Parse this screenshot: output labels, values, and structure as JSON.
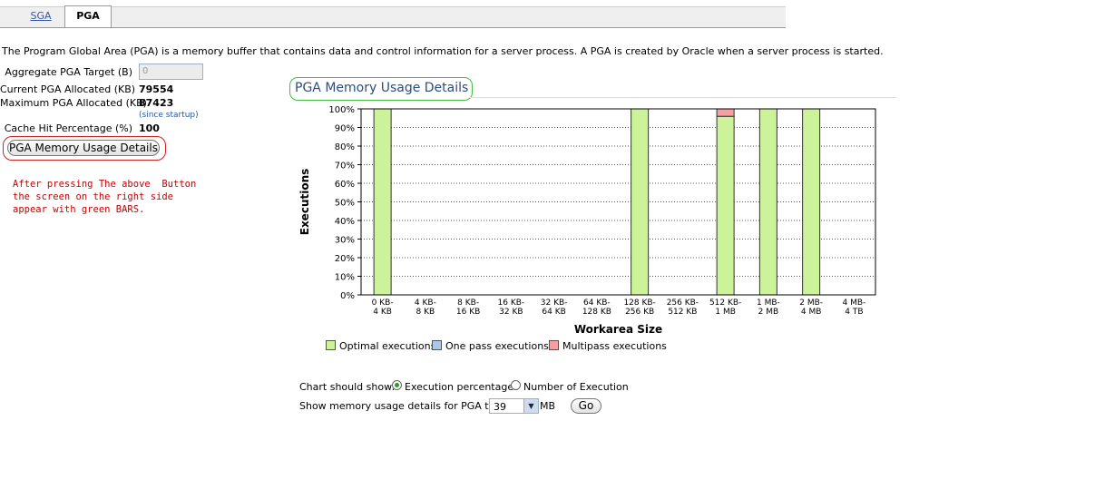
{
  "tabs": [
    {
      "label": "SGA",
      "selected": false
    },
    {
      "label": "PGA",
      "selected": true
    }
  ],
  "description": "The Program Global Area (PGA) is a memory buffer that contains data and control information for a server process. A PGA is created by Oracle when a server process is started.",
  "fields": {
    "aggregate_target_label": "Aggregate PGA Target (B)",
    "aggregate_target_value": "0",
    "current_label": "Current PGA Allocated (KB)",
    "current_value": "79554",
    "maximum_label": "Maximum PGA Allocated (KB)",
    "maximum_value": "87423",
    "since_startup": "(since startup)",
    "cache_hit_label": "Cache Hit Percentage (%)",
    "cache_hit_value": "100"
  },
  "details_button_label": "PGA Memory Usage Details",
  "annotation_note": "After pressing The above  Button\nthe screen on the right side\nappear with green BARS.",
  "chart_panel": {
    "title": "PGA Memory Usage Details",
    "colors": {
      "optimal": "#ccf29a",
      "onepass": "#a8c8f0",
      "multipass": "#f4a0a0",
      "grid": "#555555"
    },
    "legend": {
      "optimal": "Optimal executions",
      "onepass": "One pass executions",
      "multipass": "Multipass executions"
    },
    "controls": {
      "show_label": "Chart should show:",
      "option_percent": "Execution percentages",
      "option_number": "Number of Execution",
      "selected_option": "percent",
      "target_label": "Show memory usage details for PGA target:",
      "target_value": "39",
      "target_unit": "MB",
      "go_label": "Go"
    }
  },
  "chart_data": {
    "type": "bar",
    "stacked": true,
    "xlabel": "Workarea Size",
    "ylabel": "Executions",
    "ylim": [
      0,
      100
    ],
    "yticks": [
      "0%",
      "10%",
      "20%",
      "30%",
      "40%",
      "50%",
      "60%",
      "70%",
      "80%",
      "90%",
      "100%"
    ],
    "categories": [
      [
        "0 KB-",
        "4 KB"
      ],
      [
        "4 KB-",
        "8 KB"
      ],
      [
        "8 KB-",
        "16 KB"
      ],
      [
        "16 KB-",
        "32 KB"
      ],
      [
        "32 KB-",
        "64 KB"
      ],
      [
        "64 KB-",
        "128 KB"
      ],
      [
        "128 KB-",
        "256 KB"
      ],
      [
        "256 KB-",
        "512 KB"
      ],
      [
        "512 KB-",
        "1 MB"
      ],
      [
        "1 MB-",
        "2 MB"
      ],
      [
        "2 MB-",
        "4 MB"
      ],
      [
        "4 MB-",
        "4 TB"
      ]
    ],
    "series": [
      {
        "name": "Optimal executions",
        "values": [
          100,
          0,
          0,
          0,
          0,
          0,
          100,
          0,
          96,
          100,
          100,
          0
        ]
      },
      {
        "name": "One pass executions",
        "values": [
          0,
          0,
          0,
          0,
          0,
          0,
          0,
          0,
          0,
          0,
          0,
          0
        ]
      },
      {
        "name": "Multipass executions",
        "values": [
          0,
          0,
          0,
          0,
          0,
          0,
          0,
          0,
          4,
          0,
          0,
          0
        ]
      }
    ],
    "grid": true,
    "legend_position": "bottom"
  }
}
